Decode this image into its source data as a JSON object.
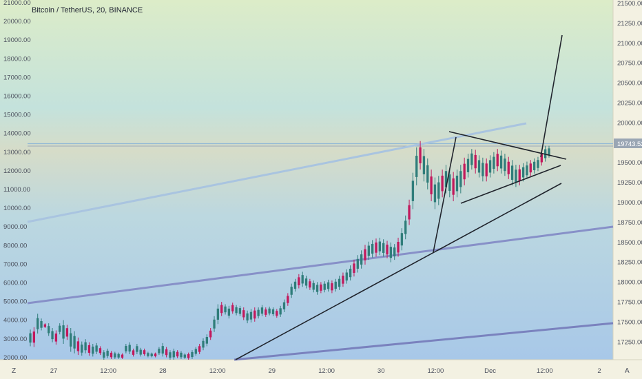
{
  "chart_data": {
    "type": "candlestick",
    "title": "Bitcoin / TetherUS, 20, BINANCE",
    "last_price_label": "19743.52",
    "bottom_left_label": "Z",
    "bottom_right_label": "A",
    "left_axis": {
      "ticks": [
        "21000.00",
        "20000.00",
        "19000.00",
        "18000.00",
        "17000.00",
        "16000.00",
        "15000.00",
        "14000.00",
        "13000.00",
        "12000.00",
        "11000.00",
        "10000.00",
        "9000.00",
        "8000.00",
        "7000.00",
        "6000.00",
        "5000.00",
        "4000.00",
        "3000.00",
        "2000.00"
      ]
    },
    "right_axis": {
      "ylim": [
        17100,
        21640
      ],
      "ticks": [
        "21500.00",
        "21250.00",
        "21000.00",
        "20750.00",
        "20500.00",
        "20250.00",
        "20000.00",
        "19750.00",
        "19500.00",
        "19250.00",
        "19000.00",
        "18750.00",
        "18500.00",
        "18250.00",
        "18000.00",
        "17750.00",
        "17500.00",
        "17250.00"
      ]
    },
    "x_axis": {
      "ticks": [
        "27",
        "12:00",
        "28",
        "12:00",
        "29",
        "12:00",
        "30",
        "12:00",
        "Dec",
        "12:00",
        "2"
      ]
    },
    "candles": [
      [
        17270,
        17480
      ],
      [
        17260,
        17510
      ],
      [
        17430,
        17680
      ],
      [
        17470,
        17620
      ],
      [
        17500,
        17560
      ],
      [
        17400,
        17560
      ],
      [
        17320,
        17500
      ],
      [
        17290,
        17470
      ],
      [
        17420,
        17560
      ],
      [
        17300,
        17600
      ],
      [
        17350,
        17540
      ],
      [
        17200,
        17500
      ],
      [
        17180,
        17460
      ],
      [
        17160,
        17380
      ],
      [
        17150,
        17330
      ],
      [
        17180,
        17360
      ],
      [
        17150,
        17320
      ],
      [
        17140,
        17300
      ],
      [
        17170,
        17310
      ],
      [
        17160,
        17270
      ],
      [
        17100,
        17220
      ],
      [
        17120,
        17240
      ],
      [
        17110,
        17210
      ],
      [
        17110,
        17200
      ],
      [
        17110,
        17190
      ],
      [
        17110,
        17180
      ],
      [
        17180,
        17300
      ],
      [
        17170,
        17320
      ],
      [
        17140,
        17240
      ],
      [
        17170,
        17300
      ],
      [
        17140,
        17250
      ],
      [
        17150,
        17240
      ],
      [
        17130,
        17200
      ],
      [
        17130,
        17190
      ],
      [
        17130,
        17190
      ],
      [
        17160,
        17260
      ],
      [
        17140,
        17310
      ],
      [
        17130,
        17260
      ],
      [
        17100,
        17220
      ],
      [
        17100,
        17240
      ],
      [
        17120,
        17220
      ],
      [
        17110,
        17210
      ],
      [
        17110,
        17180
      ],
      [
        17100,
        17190
      ],
      [
        17110,
        17220
      ],
      [
        17150,
        17260
      ],
      [
        17170,
        17300
      ],
      [
        17220,
        17370
      ],
      [
        17270,
        17420
      ],
      [
        17350,
        17500
      ],
      [
        17450,
        17650
      ],
      [
        17550,
        17800
      ],
      [
        17650,
        17830
      ],
      [
        17670,
        17800
      ],
      [
        17620,
        17780
      ],
      [
        17680,
        17820
      ],
      [
        17660,
        17790
      ],
      [
        17650,
        17780
      ],
      [
        17600,
        17760
      ],
      [
        17560,
        17720
      ],
      [
        17570,
        17740
      ],
      [
        17580,
        17760
      ],
      [
        17620,
        17760
      ],
      [
        17650,
        17790
      ],
      [
        17640,
        17760
      ],
      [
        17660,
        17770
      ],
      [
        17650,
        17760
      ],
      [
        17630,
        17740
      ],
      [
        17640,
        17780
      ],
      [
        17700,
        17860
      ],
      [
        17780,
        17940
      ],
      [
        17880,
        18060
      ],
      [
        17960,
        18120
      ],
      [
        18000,
        18180
      ],
      [
        18020,
        18210
      ],
      [
        18000,
        18160
      ],
      [
        17980,
        18120
      ],
      [
        17950,
        18100
      ],
      [
        17920,
        18080
      ],
      [
        17940,
        18080
      ],
      [
        17950,
        18090
      ],
      [
        17960,
        18110
      ],
      [
        17940,
        18100
      ],
      [
        17960,
        18120
      ],
      [
        17980,
        18160
      ],
      [
        18020,
        18200
      ],
      [
        18060,
        18240
      ],
      [
        18100,
        18290
      ],
      [
        18150,
        18360
      ],
      [
        18200,
        18420
      ],
      [
        18250,
        18480
      ],
      [
        18300,
        18550
      ],
      [
        18360,
        18590
      ],
      [
        18390,
        18610
      ],
      [
        18400,
        18630
      ],
      [
        18420,
        18640
      ],
      [
        18400,
        18620
      ],
      [
        18380,
        18600
      ],
      [
        18330,
        18580
      ],
      [
        18360,
        18560
      ],
      [
        18400,
        18640
      ],
      [
        18480,
        18760
      ],
      [
        18620,
        18920
      ],
      [
        18800,
        19120
      ],
      [
        19000,
        19460
      ],
      [
        19300,
        19780
      ],
      [
        19500,
        19860
      ],
      [
        19350,
        19760
      ],
      [
        19250,
        19640
      ],
      [
        19100,
        19500
      ],
      [
        19000,
        19400
      ],
      [
        19050,
        19420
      ],
      [
        19150,
        19500
      ],
      [
        19200,
        19560
      ],
      [
        19150,
        19520
      ],
      [
        19100,
        19470
      ],
      [
        19150,
        19500
      ],
      [
        19200,
        19560
      ],
      [
        19300,
        19650
      ],
      [
        19400,
        19700
      ],
      [
        19500,
        19760
      ],
      [
        19450,
        19750
      ],
      [
        19400,
        19680
      ],
      [
        19350,
        19650
      ],
      [
        19350,
        19640
      ],
      [
        19400,
        19680
      ],
      [
        19450,
        19720
      ],
      [
        19480,
        19760
      ],
      [
        19450,
        19740
      ],
      [
        19420,
        19700
      ],
      [
        19380,
        19660
      ],
      [
        19300,
        19620
      ],
      [
        19280,
        19560
      ],
      [
        19300,
        19560
      ],
      [
        19350,
        19580
      ],
      [
        19380,
        19600
      ],
      [
        19420,
        19620
      ],
      [
        19450,
        19640
      ],
      [
        19480,
        19660
      ],
      [
        19550,
        19740
      ],
      [
        19600,
        19800
      ],
      [
        19650,
        19800
      ]
    ]
  }
}
